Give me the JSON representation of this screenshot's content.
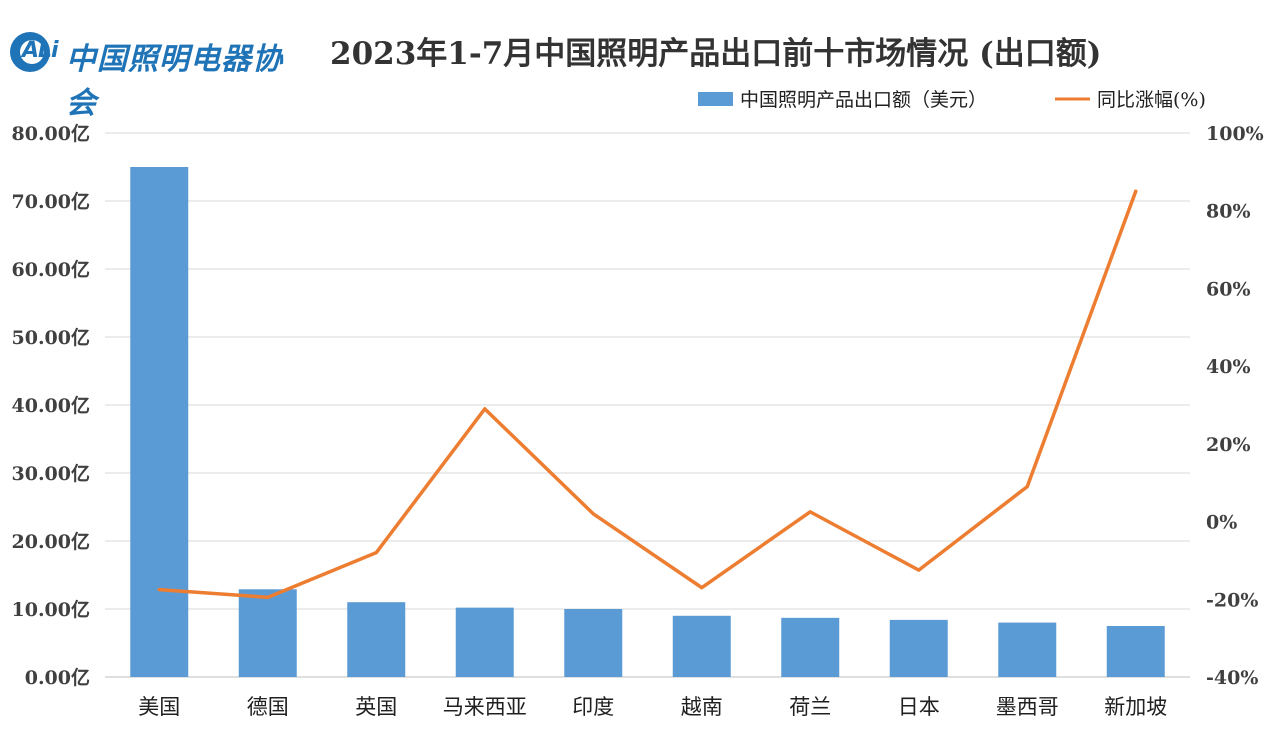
{
  "logo": {
    "abbr": "ALi",
    "name": "中国照明电器协会"
  },
  "chart_data": {
    "type": "bar",
    "title": "2023年1-7月中国照明产品出口前十市场情况 (出口额)",
    "categories": [
      "美国",
      "德国",
      "英国",
      "马来西亚",
      "印度",
      "越南",
      "荷兰",
      "日本",
      "墨西哥",
      "新加坡"
    ],
    "series": [
      {
        "name": "中国照明产品出口额（美元）",
        "type": "bar",
        "axis": "left",
        "color": "#5b9bd5",
        "values": [
          75.0,
          12.9,
          11.0,
          10.2,
          10.0,
          9.0,
          8.7,
          8.4,
          8.0,
          7.5
        ]
      },
      {
        "name": "同比涨幅(%)",
        "type": "line",
        "axis": "right",
        "color": "#ed7d31",
        "values": [
          -17.5,
          -19.5,
          -8.0,
          29.0,
          2.0,
          -17.0,
          2.5,
          -12.5,
          9.0,
          85.0
        ]
      }
    ],
    "y_left": {
      "min": 0,
      "max": 80,
      "step": 10,
      "tick_labels": [
        "0.00亿",
        "10.00亿",
        "20.00亿",
        "30.00亿",
        "40.00亿",
        "50.00亿",
        "60.00亿",
        "70.00亿",
        "80.00亿"
      ]
    },
    "y_right": {
      "min": -40,
      "max": 100,
      "step": 20,
      "tick_labels": [
        "-40%",
        "-20%",
        "0%",
        "20%",
        "40%",
        "60%",
        "80%",
        "100%"
      ]
    },
    "grid": true,
    "legend": "top-right"
  }
}
